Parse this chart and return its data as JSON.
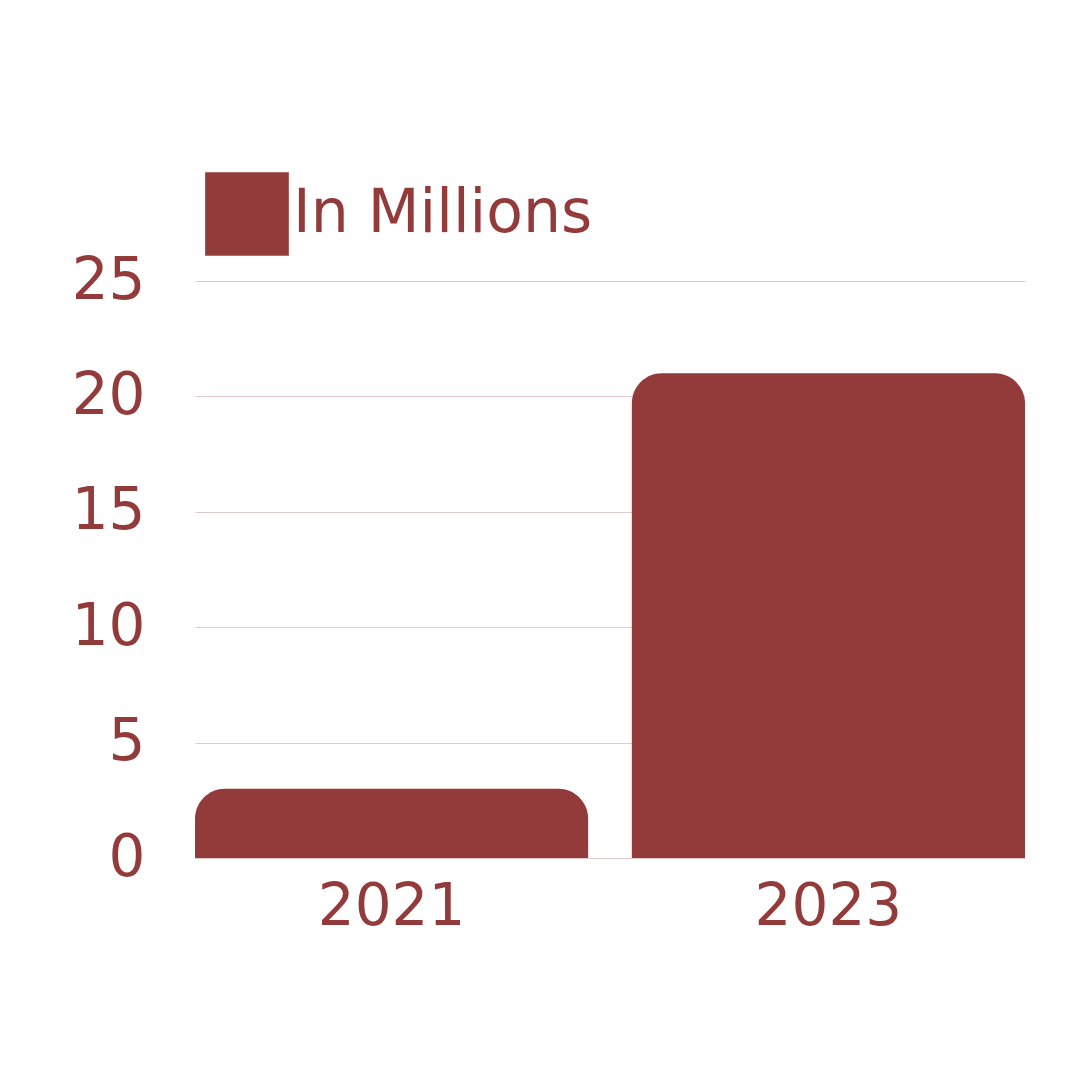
{
  "chart_data": {
    "type": "bar",
    "categories": [
      "2021",
      "2023"
    ],
    "series": [
      {
        "name": "In Millions",
        "color": "#933b3a",
        "values": [
          3,
          21
        ]
      }
    ],
    "ylim": [
      0,
      25
    ],
    "yticks": [
      0,
      5,
      10,
      15,
      20,
      25
    ],
    "grid": "y",
    "legend": "top"
  }
}
